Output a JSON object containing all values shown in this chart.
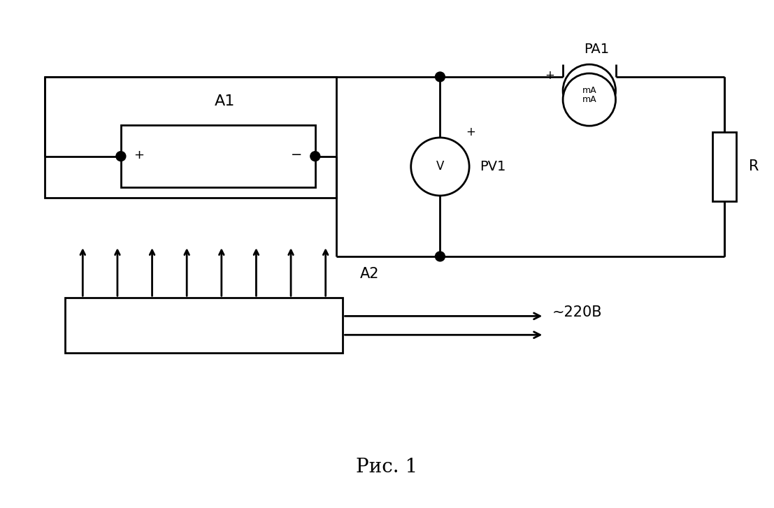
{
  "background_color": "#ffffff",
  "line_color": "#000000",
  "line_width": 2.0,
  "fig_width": 11.07,
  "fig_height": 7.27,
  "caption": "Рис. 1",
  "label_A1": "A1",
  "label_A2": "A2",
  "label_PA1": "PA1",
  "label_PV1": "PV1",
  "label_R": "R",
  "label_mA": "mA",
  "label_V": "V",
  "label_220": "~220В"
}
